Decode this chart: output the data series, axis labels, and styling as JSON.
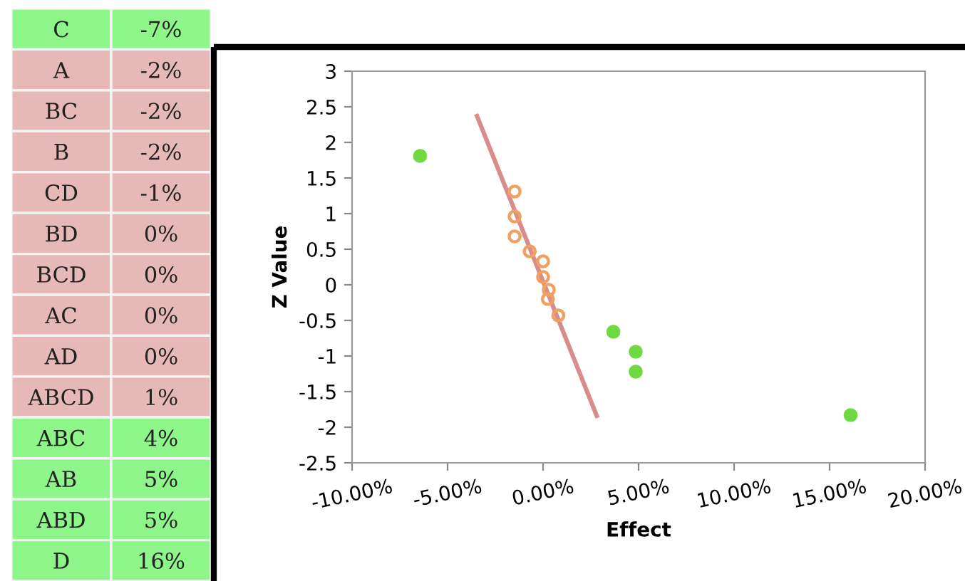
{
  "chart_data": [
    {
      "type": "other",
      "annotations": [
        "C",
        "-7%",
        "A",
        "-2%",
        "BC",
        "-2%",
        "B",
        "-2%",
        "CD",
        "-1%",
        "BD",
        "0%",
        "BCD",
        "0%",
        "AC",
        "0%",
        "AD",
        "0%",
        "ABCD",
        "1%",
        "ABC",
        "4%",
        "AB",
        "5%",
        "ABD",
        "5%",
        "D",
        "16%"
      ],
      "colors": [
        "#8ef58a",
        "#e6b8b7",
        "#e6b8b7",
        "#e6b8b7",
        "#e6b8b7",
        "#e6b8b7",
        "#e6b8b7",
        "#e6b8b7",
        "#e6b8b7",
        "#e6b8b7",
        "#8ef58a",
        "#8ef58a",
        "#8ef58a",
        "#8ef58a"
      ]
    },
    {
      "type": "scatter",
      "xlabel": "Effect",
      "ylabel": "Z Value",
      "xlim": [
        -10,
        20
      ],
      "xticks": [
        {
          "value": -10,
          "label": "-10.00%"
        },
        {
          "value": -5,
          "label": "-5.00%"
        },
        {
          "value": 0,
          "label": "0.00%"
        },
        {
          "value": 5,
          "label": "5.00%"
        },
        {
          "value": 10,
          "label": "10.00%"
        },
        {
          "value": 15,
          "label": "15.00%"
        },
        {
          "value": 20,
          "label": "20.00%"
        }
      ],
      "ylim": [
        -2.5,
        3
      ],
      "yticks": [
        3,
        2.5,
        2,
        1.5,
        1,
        0.5,
        0,
        -0.5,
        -1,
        -1.5,
        -2,
        -2.5
      ],
      "marker": "circle",
      "series": [
        {
          "type": "line",
          "color": "#d98c8c",
          "x": [
            -3.46,
            2.81
          ],
          "values": [
            2.37,
            -1.84
          ],
          "marker": "none"
        },
        {
          "color": "#70d840",
          "x": [
            -6.44,
            3.68,
            4.85,
            4.85,
            16.1
          ],
          "values": [
            1.81,
            -0.66,
            -0.94,
            -1.22,
            -1.83
          ]
        },
        {
          "color": "#f0a060",
          "x": [
            -1.49,
            -1.49,
            -1.49,
            -0.7,
            0,
            0,
            0.3,
            0.25,
            0.8
          ],
          "values": [
            1.31,
            0.96,
            0.68,
            0.47,
            0.33,
            0.11,
            -0.07,
            -0.2,
            -0.43
          ]
        }
      ]
    }
  ]
}
